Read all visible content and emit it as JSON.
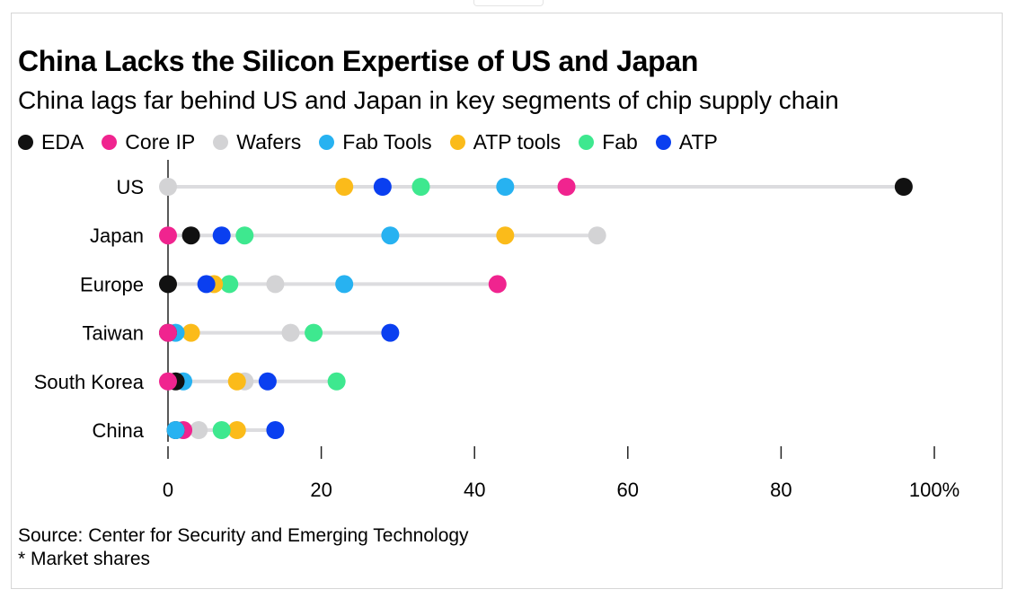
{
  "colors": {
    "EDA": "#111111",
    "Core IP": "#f0248f",
    "Wafers": "#d3d3d5",
    "Fab Tools": "#27b2f1",
    "ATP tools": "#fbbb1a",
    "Fab": "#3ee88f",
    "ATP": "#0a3ff0"
  },
  "footer": {
    "source": "Source: Center for Security and Emerging Technology",
    "note": "* Market shares"
  },
  "chart_data": {
    "type": "scatter",
    "title": "China Lacks the Silicon Expertise of US and Japan",
    "subtitle": "China lags far behind US and Japan in key segments of chip supply chain",
    "categories": [
      "US",
      "Japan",
      "Europe",
      "Taiwan",
      "South Korea",
      "China"
    ],
    "series": [
      {
        "name": "EDA",
        "values": [
          96,
          3,
          0,
          0,
          1,
          1
        ]
      },
      {
        "name": "Core IP",
        "values": [
          52,
          0,
          43,
          0,
          0,
          2
        ]
      },
      {
        "name": "Wafers",
        "values": [
          0,
          56,
          14,
          16,
          10,
          4
        ]
      },
      {
        "name": "Fab Tools",
        "values": [
          44,
          29,
          23,
          1,
          2,
          1
        ]
      },
      {
        "name": "ATP tools",
        "values": [
          23,
          44,
          6,
          3,
          9,
          9
        ]
      },
      {
        "name": "Fab",
        "values": [
          33,
          10,
          8,
          19,
          22,
          7
        ]
      },
      {
        "name": "ATP",
        "values": [
          28,
          7,
          5,
          29,
          13,
          14
        ]
      }
    ],
    "x_ticks": [
      "0",
      "20",
      "40",
      "60",
      "80",
      "100%"
    ],
    "x_tick_values": [
      0,
      20,
      40,
      60,
      80,
      100
    ],
    "xlim": [
      0,
      100
    ],
    "legend_position": "top-left",
    "grid": false
  }
}
